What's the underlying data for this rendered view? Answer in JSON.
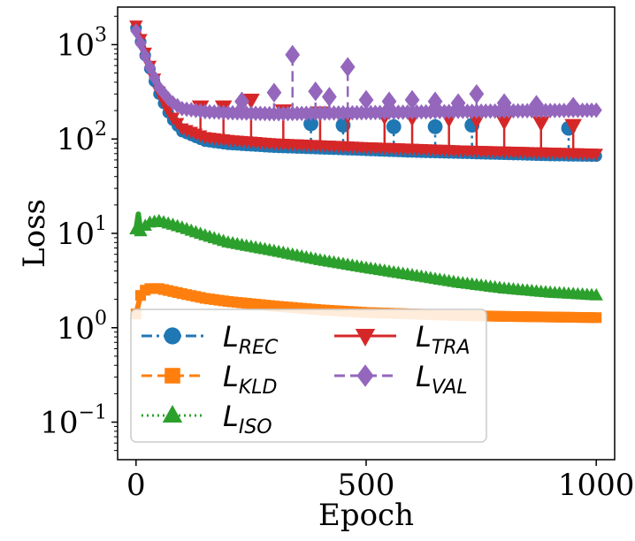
{
  "chart_data": {
    "type": "line",
    "title": "",
    "xlabel": "Epoch",
    "ylabel": "Loss",
    "yscale": "log",
    "xlim": [
      -40,
      1040
    ],
    "ylim": [
      0.04,
      2500
    ],
    "xticks": [
      {
        "value": 0,
        "label": "0"
      },
      {
        "value": 500,
        "label": "500"
      },
      {
        "value": 1000,
        "label": "1000"
      }
    ],
    "yticks": [
      {
        "value": 0.1,
        "base": "10",
        "exp": "−1"
      },
      {
        "value": 1,
        "base": "10",
        "exp": "0"
      },
      {
        "value": 10,
        "base": "10",
        "exp": "1"
      },
      {
        "value": 100,
        "base": "10",
        "exp": "2"
      },
      {
        "value": 1000,
        "base": "10",
        "exp": "3"
      }
    ],
    "legend_position": "lower-left",
    "series": [
      {
        "name": "REC",
        "prefix": "L",
        "color": "#1f77b4",
        "marker": "circle",
        "linestyle": "dashdot",
        "x": [
          0,
          25,
          50,
          75,
          100,
          150,
          200,
          300,
          400,
          500,
          600,
          700,
          800,
          900,
          1000
        ],
        "y": [
          1500,
          650,
          300,
          170,
          120,
          95,
          88,
          82,
          79,
          76,
          73,
          71,
          69,
          67,
          66
        ],
        "spikes": [
          [
            380,
            145
          ],
          [
            450,
            140
          ],
          [
            560,
            135
          ],
          [
            650,
            135
          ],
          [
            730,
            140
          ],
          [
            940,
            130
          ]
        ]
      },
      {
        "name": "KLD",
        "prefix": "L",
        "color": "#ff7f0e",
        "marker": "square",
        "linestyle": "dashed",
        "x": [
          0,
          10,
          20,
          30,
          50,
          75,
          100,
          150,
          200,
          300,
          400,
          500,
          600,
          700,
          800,
          900,
          1000
        ],
        "y": [
          1.4,
          2.2,
          2.5,
          2.6,
          2.6,
          2.45,
          2.3,
          2.05,
          1.9,
          1.7,
          1.55,
          1.45,
          1.4,
          1.35,
          1.32,
          1.3,
          1.28
        ],
        "spikes": []
      },
      {
        "name": "ISO",
        "prefix": "L",
        "color": "#2ca02c",
        "marker": "triangle",
        "linestyle": "dotted",
        "x": [
          0,
          5,
          10,
          20,
          30,
          50,
          75,
          100,
          150,
          200,
          300,
          400,
          500,
          600,
          700,
          800,
          900,
          1000
        ],
        "y": [
          11,
          16,
          10.5,
          12,
          13,
          13.5,
          12.5,
          11.5,
          9.5,
          8,
          6.5,
          5.2,
          4.3,
          3.6,
          3.0,
          2.6,
          2.35,
          2.2
        ],
        "spikes": []
      },
      {
        "name": "TRA",
        "prefix": "L",
        "color": "#d62728",
        "marker": "triangle-down",
        "linestyle": "solid",
        "x": [
          0,
          25,
          50,
          75,
          100,
          150,
          200,
          300,
          400,
          500,
          600,
          700,
          800,
          900,
          1000
        ],
        "y": [
          1600,
          700,
          320,
          180,
          130,
          105,
          98,
          90,
          86,
          82,
          79,
          76,
          74,
          72,
          70
        ],
        "spikes": [
          [
            140,
            220
          ],
          [
            190,
            220
          ],
          [
            250,
            260
          ],
          [
            320,
            200
          ],
          [
            400,
            190
          ],
          [
            460,
            180
          ],
          [
            540,
            175
          ],
          [
            600,
            170
          ],
          [
            680,
            165
          ],
          [
            740,
            160
          ],
          [
            800,
            155
          ],
          [
            880,
            150
          ],
          [
            950,
            140
          ]
        ]
      },
      {
        "name": "VAL",
        "prefix": "L",
        "color": "#9467bd",
        "marker": "diamond",
        "linestyle": "dashed",
        "x": [
          0,
          25,
          50,
          75,
          100,
          150,
          200,
          300,
          400,
          500,
          600,
          700,
          800,
          900,
          1000
        ],
        "y": [
          1400,
          650,
          350,
          250,
          210,
          195,
          190,
          185,
          188,
          190,
          193,
          196,
          198,
          200,
          202
        ],
        "spikes": [
          [
            230,
            250
          ],
          [
            300,
            310
          ],
          [
            340,
            780
          ],
          [
            390,
            320
          ],
          [
            420,
            280
          ],
          [
            460,
            580
          ],
          [
            500,
            260
          ],
          [
            550,
            250
          ],
          [
            600,
            260
          ],
          [
            650,
            250
          ],
          [
            700,
            240
          ],
          [
            740,
            300
          ],
          [
            800,
            240
          ],
          [
            870,
            230
          ],
          [
            950,
            220
          ]
        ]
      }
    ]
  }
}
